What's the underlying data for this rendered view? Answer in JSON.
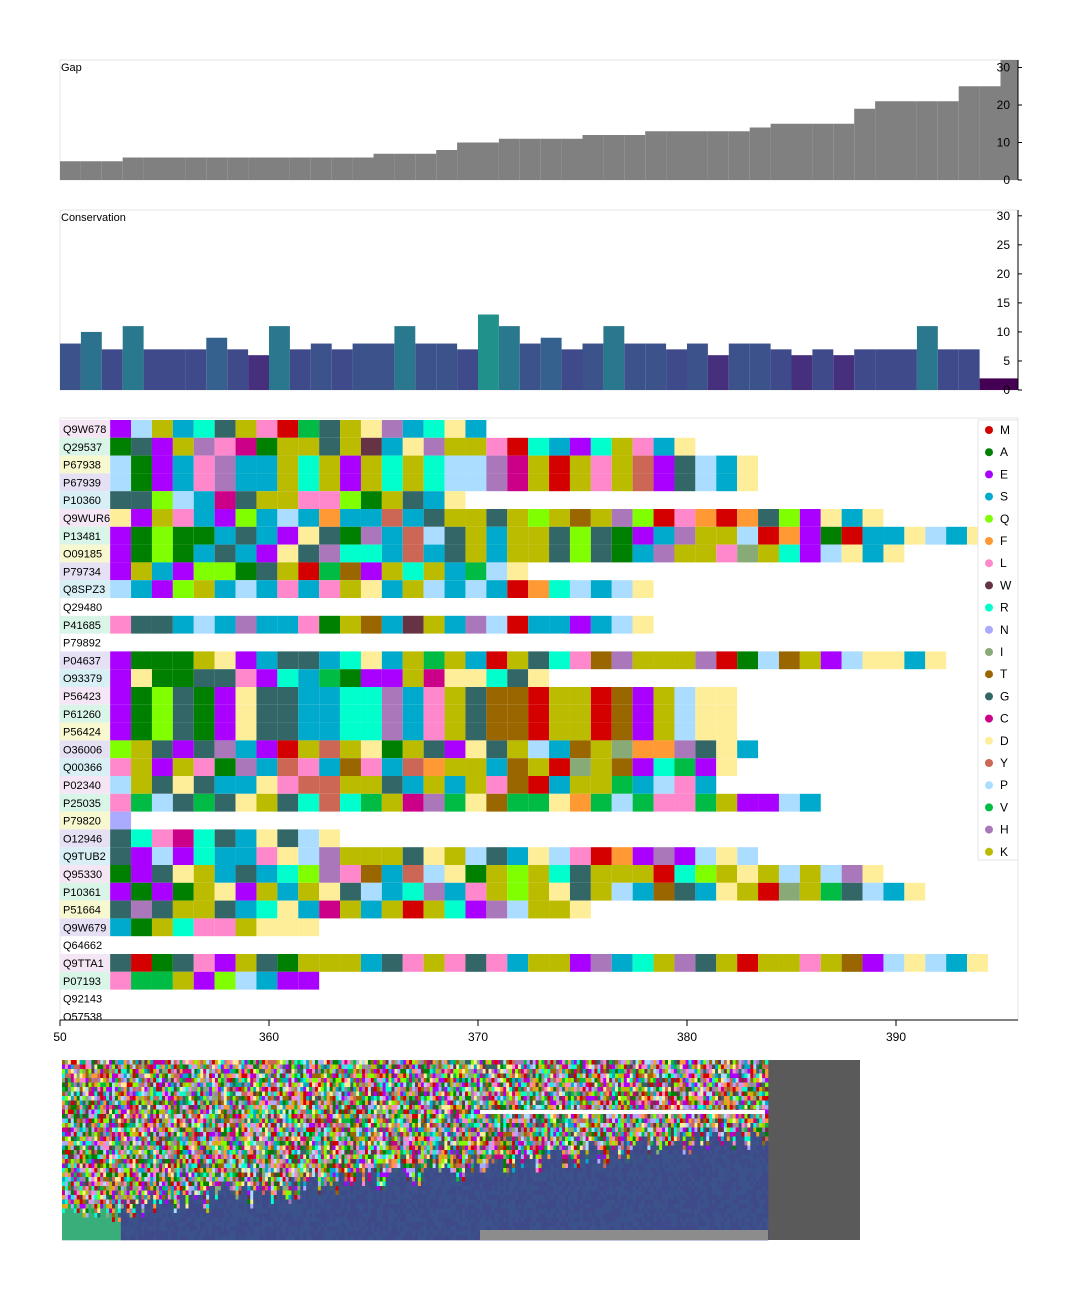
{
  "chart_data": [
    {
      "type": "bar",
      "title": "Gap",
      "ylim": [
        0,
        32
      ],
      "yticks": [
        0,
        10,
        20,
        30
      ],
      "x": [
        350,
        351,
        352,
        353,
        354,
        355,
        356,
        357,
        358,
        359,
        360,
        361,
        362,
        363,
        364,
        365,
        366,
        367,
        368,
        369,
        370,
        371,
        372,
        373,
        374,
        375,
        376,
        377,
        378,
        379,
        380,
        381,
        382,
        383,
        384,
        385,
        386,
        387,
        388,
        389,
        390,
        391,
        392,
        393,
        394,
        395
      ],
      "values": [
        5,
        5,
        5,
        6,
        6,
        6,
        6,
        6,
        6,
        6,
        6,
        6,
        6,
        6,
        6,
        7,
        7,
        7,
        8,
        10,
        10,
        11,
        11,
        11,
        11,
        12,
        12,
        12,
        13,
        13,
        13,
        13,
        13,
        14,
        15,
        15,
        15,
        15,
        19,
        21,
        21,
        21,
        21,
        25,
        25,
        32
      ]
    },
    {
      "type": "bar",
      "title": "Conservation",
      "ylim": [
        0,
        31
      ],
      "yticks": [
        0,
        5,
        10,
        15,
        20,
        25,
        30
      ],
      "x": [
        350,
        351,
        352,
        353,
        354,
        355,
        356,
        357,
        358,
        359,
        360,
        361,
        362,
        363,
        364,
        365,
        366,
        367,
        368,
        369,
        370,
        371,
        372,
        373,
        374,
        375,
        376,
        377,
        378,
        379,
        380,
        381,
        382,
        383,
        384,
        385,
        386,
        387,
        388,
        389,
        390,
        391,
        392,
        393,
        394,
        395
      ],
      "values": [
        8,
        10,
        7,
        11,
        7,
        7,
        7,
        9,
        7,
        6,
        11,
        7,
        8,
        7,
        8,
        8,
        11,
        8,
        8,
        7,
        13,
        11,
        8,
        9,
        7,
        8,
        11,
        8,
        8,
        7,
        8,
        6,
        8,
        8,
        7,
        6,
        7,
        6,
        7,
        7,
        7,
        11,
        7,
        7,
        2,
        2
      ],
      "colors": [
        "#3b528b",
        "#2c728e",
        "#3e4a89",
        "#2a788e",
        "#3e4a89",
        "#3e4a89",
        "#3e4a89",
        "#34618d",
        "#3e4a89",
        "#46307e",
        "#2a788e",
        "#3e4a89",
        "#3b528b",
        "#3e4a89",
        "#3b528b",
        "#3b528b",
        "#2a788e",
        "#3b528b",
        "#3b528b",
        "#3e4a89",
        "#21918c",
        "#2a788e",
        "#3b528b",
        "#34618d",
        "#3e4a89",
        "#3b528b",
        "#2a788e",
        "#3b528b",
        "#3b528b",
        "#3e4a89",
        "#3b528b",
        "#46307e",
        "#3b528b",
        "#3b528b",
        "#3e4a89",
        "#46307e",
        "#3e4a89",
        "#46307e",
        "#3e4a89",
        "#3e4a89",
        "#3e4a89",
        "#2a788e",
        "#3e4a89",
        "#3e4a89",
        "#440154",
        "#440154"
      ]
    },
    {
      "type": "heatmap",
      "xticks": [
        360,
        370,
        380,
        390
      ],
      "x_first_tick_partial": "50",
      "x_start": 350,
      "rows": [
        {
          "id": "Q9W678",
          "start": 352.4,
          "seq": "EPKSRGKLMVGKDHSRDS"
        },
        {
          "id": "Q29537",
          "start": 352.4,
          "seq": "AGEKHLCAKKGKWSDHKKLMRSERKLSD"
        },
        {
          "id": "P67938",
          "start": 352.4,
          "seq": "PAESLHSSKRKEKRKRPPHCKMKLKYEGPSD"
        },
        {
          "id": "P67939",
          "start": 352.4,
          "seq": "PAESLHSSKRKEKRKRPPHCKMKLKYEGPSD"
        },
        {
          "id": "P10360",
          "start": 352.4,
          "seq": "GGQPSCGKKLLQAKGSD"
        },
        {
          "id": "Q9WUR6",
          "start": 352.4,
          "seq": "DEKLSEQSPSFSSYSGKKGKQKTKHQMLFMFGQEDSD"
        },
        {
          "id": "P13481",
          "start": 352.4,
          "seq": "EAQAASGSEDGAHSYPGKSKKGQGAESHKKPMFEAMSSDPSD"
        },
        {
          "id": "O09185",
          "start": 352.4,
          "seq": "EAQASGSEDGHRRSYSGKSKKGQGASHKKLIKREPDSD"
        },
        {
          "id": "P79734",
          "start": 352.4,
          "seq": "EKSEQQAGKMVTEKRKSVPD"
        },
        {
          "id": "Q8SPZ3",
          "start": 352.4,
          "seq": "PSEQKSPSLSLKDSKPSPSMFRPSPD"
        },
        {
          "id": "Q29480",
          "start": 352.4,
          "seq": ""
        },
        {
          "id": "P41685",
          "start": 352.4,
          "seq": "LGGSPSHSSLAKTSWKSHPMSSESPD"
        },
        {
          "id": "P79892",
          "start": 352.4,
          "seq": ""
        },
        {
          "id": "P04637",
          "start": 352.4,
          "seq": "EAAAKDESGGSRDSKVKSMKGRLTHKKKHMAPTKEPDDSD"
        },
        {
          "id": "O93379",
          "start": 352.4,
          "seq": "EDAAGGLERSVAEEKCDDRGD"
        },
        {
          "id": "P56423",
          "start": 352.4,
          "seq": "EAQGAEDGGSSRRHSLKGTTMKKMTEKPDD"
        },
        {
          "id": "P61260",
          "start": 352.4,
          "seq": "EAQGAEDGGSSRRHSLKGTTMKKMTEKPDD"
        },
        {
          "id": "P56424",
          "start": 352.4,
          "seq": "EAQGAEDGGSSRRHSLKGTTMKKMTEKPDD"
        },
        {
          "id": "O36006",
          "start": 352.4,
          "seq": "QKGEGHSEMKYKDAKGEDGKPSTKIFFHGDS"
        },
        {
          "id": "Q00366",
          "start": 352.4,
          "seq": "LKEKLAHSYLSTLSYFKKSTKMIKTERVED"
        },
        {
          "id": "P02340",
          "start": 352.4,
          "seq": "PKGDGSSDLYYKKGSKSKLTMSKKVSPLS"
        },
        {
          "id": "P25035",
          "start": 352.4,
          "seq": "LVPGVGDKGRYRVKCHVDTVVDFVPVLLVKEEPS"
        },
        {
          "id": "P79820",
          "start": 352.4,
          "seq": "N"
        },
        {
          "id": "O12946",
          "start": 352.4,
          "seq": "GRLCRGSDGPD"
        },
        {
          "id": "Q9TUB2",
          "start": 352.4,
          "seq": "GEPERSSLDPHKKKGDKPGSDPLMFEHEPDP"
        },
        {
          "id": "Q95330",
          "start": 352.4,
          "seq": "AEGDKSGSRQHLTSYPDAKQKRGKKKMRQKDKPKPHD"
        },
        {
          "id": "P10361",
          "start": 352.4,
          "seq": "EAEAKDEKSKDGPSRHSLKQKDGKPSTGSDKMIKVGPSD"
        },
        {
          "id": "P51664",
          "start": 352.4,
          "seq": "GHGKKGSRDSCKSKMKREHPKKD"
        },
        {
          "id": "Q9W679",
          "start": 352.4,
          "seq": "SAKRLLKDDD"
        },
        {
          "id": "Q64662",
          "start": 352.4,
          "seq": ""
        },
        {
          "id": "Q9TTA1",
          "start": 352.4,
          "seq": "GMAGLEKGAKKKSGLKLGLSKKEHSRKHGKMKKLKTEPDPSD"
        },
        {
          "id": "P07193",
          "start": 352.4,
          "seq": "LVVKEQPSEE"
        },
        {
          "id": "Q92143",
          "start": 352.4,
          "seq": ""
        },
        {
          "id": "O57538",
          "start": 352.4,
          "seq": ""
        }
      ],
      "legend": [
        {
          "aa": "M",
          "color": "#d40000"
        },
        {
          "aa": "A",
          "color": "#008000"
        },
        {
          "aa": "E",
          "color": "#aa00ff"
        },
        {
          "aa": "S",
          "color": "#00aacc"
        },
        {
          "aa": "Q",
          "color": "#80ff00"
        },
        {
          "aa": "F",
          "color": "#ff9933"
        },
        {
          "aa": "L",
          "color": "#ff88cc"
        },
        {
          "aa": "W",
          "color": "#663344"
        },
        {
          "aa": "R",
          "color": "#00ffcc"
        },
        {
          "aa": "N",
          "color": "#aaaaff"
        },
        {
          "aa": "I",
          "color": "#88aa77"
        },
        {
          "aa": "T",
          "color": "#996600"
        },
        {
          "aa": "G",
          "color": "#336666"
        },
        {
          "aa": "C",
          "color": "#cc0088"
        },
        {
          "aa": "D",
          "color": "#ffee99"
        },
        {
          "aa": "Y",
          "color": "#cc6655"
        },
        {
          "aa": "P",
          "color": "#aaddff"
        },
        {
          "aa": "V",
          "color": "#00bb44"
        },
        {
          "aa": "H",
          "color": "#aa77bb"
        },
        {
          "aa": "K",
          "color": "#bbbb00"
        }
      ]
    }
  ],
  "colors": {
    "gap_bar": "#808080",
    "panel_border": "#e6e6e6",
    "id_bg_colors": [
      "#f5e6f5",
      "#d8f5e8",
      "#f8f8d0",
      "#e6e0f5",
      "#d8f0f5"
    ]
  }
}
